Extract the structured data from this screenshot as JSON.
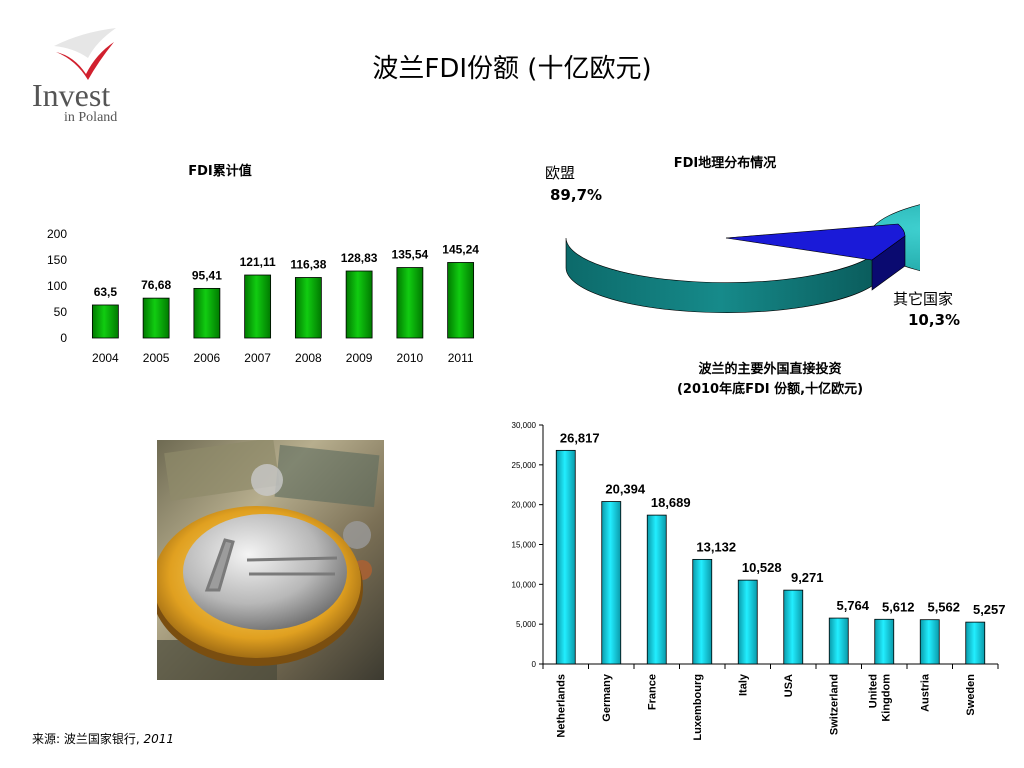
{
  "page": {
    "title": "波兰FDI份额 (十亿欧元)",
    "logo_text_1": "Invest",
    "logo_text_2": "in Poland",
    "source_label": "来源: 波兰国家银行,",
    "source_year": "2011"
  },
  "chart_data": [
    {
      "type": "bar",
      "title": "FDI累计值",
      "categories": [
        "2004",
        "2005",
        "2006",
        "2007",
        "2008",
        "2009",
        "2010",
        "2011"
      ],
      "values": [
        63.5,
        76.68,
        95.41,
        121.11,
        116.38,
        128.83,
        135.54,
        145.24
      ],
      "value_labels": [
        "63,5",
        "76,68",
        "95,41",
        "121,11",
        "116,38",
        "128,83",
        "135,54",
        "145,24"
      ],
      "ylim": [
        0,
        200
      ],
      "yticks": [
        0,
        50,
        100,
        150,
        200
      ],
      "ytick_labels": [
        "0",
        "50",
        "100",
        "150",
        "200"
      ],
      "grid": false,
      "colors": {
        "bar": "#11cc11",
        "bar_dark": "#007a00"
      }
    },
    {
      "type": "pie",
      "title": "FDI地理分布情况",
      "slices": [
        {
          "label": "欧盟",
          "value": 89.7,
          "value_label": "89,7%",
          "color": "#2bb5b5"
        },
        {
          "label": "其它国家",
          "value": 10.3,
          "value_label": "10,3%",
          "color": "#1a1ad8"
        }
      ],
      "style": "3d"
    },
    {
      "type": "bar",
      "title_line1": "波兰的主要外国直接投资",
      "title_line2": "(2010年底FDI 份额,十亿欧元)",
      "categories": [
        "Netherlands",
        "Germany",
        "France",
        "Luxembourg",
        "Italy",
        "USA",
        "Switzerland",
        "United Kingdom",
        "Austria",
        "Sweden"
      ],
      "category_lines": [
        [
          "Netherlands"
        ],
        [
          "Germany"
        ],
        [
          "France"
        ],
        [
          "Luxembourg"
        ],
        [
          "Italy"
        ],
        [
          "USA"
        ],
        [
          "Switzerland"
        ],
        [
          "United",
          "Kingdom"
        ],
        [
          "Austria"
        ],
        [
          "Sweden"
        ]
      ],
      "values": [
        26.817,
        20.394,
        18.689,
        13.132,
        10.528,
        9.271,
        5.764,
        5.612,
        5.562,
        5.257
      ],
      "value_labels": [
        "26,817",
        "20,394",
        "18,689",
        "13,132",
        "10,528",
        "9,271",
        "5,764",
        "5,612",
        "5,562",
        "5,257"
      ],
      "ylim": [
        0,
        30
      ],
      "yticks": [
        0,
        5,
        10,
        15,
        20,
        25,
        30
      ],
      "ytick_labels": [
        "0",
        "5,000",
        "10,000",
        "15,000",
        "20,000",
        "25,000",
        "30,000"
      ],
      "grid": false,
      "colors": {
        "bar": "#22eeff",
        "bar_dark": "#0a9aaa"
      }
    }
  ]
}
